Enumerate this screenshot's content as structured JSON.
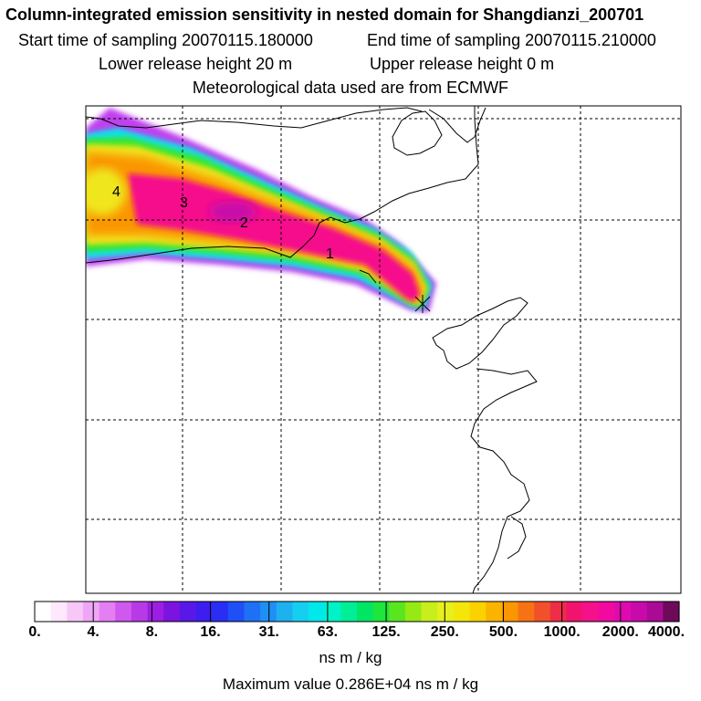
{
  "title": "Column-integrated emission sensitivity in nested domain for Shangdianzi_200701",
  "start_label": "Start time of sampling 20070115.180000",
  "end_label": "End time of sampling 20070115.210000",
  "lower_label": "Lower release height   20 m",
  "upper_label": "Upper release height    0 m",
  "met_label": "Meteorological data used are from ECMWF",
  "colorbar": {
    "tick_labels": [
      "0.",
      "4.",
      "8.",
      "16.",
      "31.",
      "63.",
      "125.",
      "250.",
      "500.",
      "1000.",
      "2000.",
      "4000."
    ],
    "colors": [
      "#ffffff",
      "#fde8fd",
      "#f7c8f7",
      "#f0a6f6",
      "#e57ef3",
      "#cf59ee",
      "#b83ae6",
      "#9d1ee2",
      "#7c14e0",
      "#5a18e8",
      "#3e1df0",
      "#2a2ef5",
      "#1f4ff6",
      "#1f70f5",
      "#1f90f3",
      "#1fb0f0",
      "#14cff0",
      "#00e8ea",
      "#00f2c8",
      "#00ee96",
      "#00e664",
      "#1ee63a",
      "#5ae61e",
      "#96ea14",
      "#c8ee1e",
      "#e6f01e",
      "#f5e60a",
      "#fad200",
      "#fab400",
      "#fa9600",
      "#f77214",
      "#f2502a",
      "#ee2d46",
      "#f0146e",
      "#f5108c",
      "#f00aa0",
      "#de0ab0",
      "#c80aaa",
      "#aa0a96",
      "#6e0a5a"
    ],
    "units": "ns m / kg"
  },
  "max_label": "Maximum value  0.286E+04 ns m / kg",
  "contour_labels": [
    "1",
    "2",
    "3",
    "4"
  ],
  "colors": {
    "plume_high": "#f5108c",
    "plume_low": "#00e8ea",
    "map_line": "#000000"
  }
}
